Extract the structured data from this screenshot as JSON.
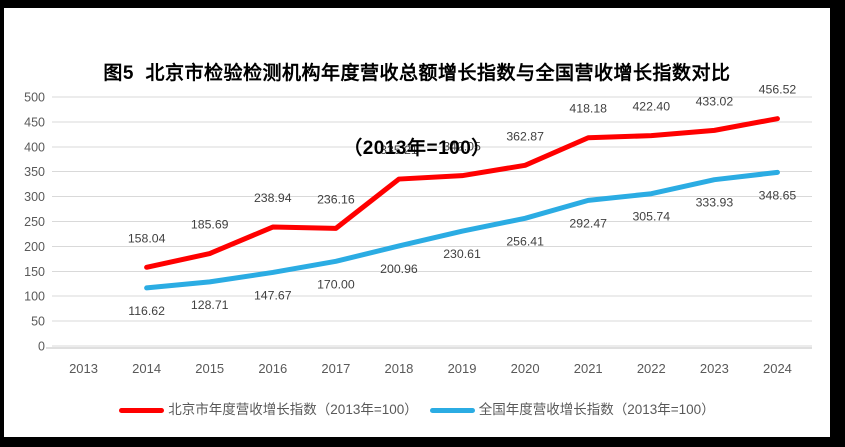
{
  "title": {
    "line1": "图5  北京市检验检测机构年度营收总额增长指数与全国营收增长指数对比",
    "line2": "（2013年=100）"
  },
  "legend": [
    {
      "label": "北京市年度营收增长指数（2013年=100）",
      "color": "#FF0000"
    },
    {
      "label": "全国年度营收增长指数（2013年=100）",
      "color": "#2BACE3"
    }
  ],
  "colors": {
    "series_beijing": "#FF0000",
    "series_national": "#2BACE3",
    "gridline": "#D9D9D9",
    "axis_line": "#BFBFBF",
    "axis_text": "#595959",
    "data_label_text": "#404040",
    "title_text": "#000000",
    "frame": "#000000"
  },
  "chart_data": {
    "type": "line",
    "title": "图5 北京市检验检测机构年度营收总额增长指数与全国营收增长指数对比（2013年=100）",
    "categories": [
      "2013",
      "2014",
      "2015",
      "2016",
      "2017",
      "2018",
      "2019",
      "2020",
      "2021",
      "2022",
      "2023",
      "2024"
    ],
    "series": [
      {
        "name": "北京市年度营收增长指数（2013年=100）",
        "color": "#FF0000",
        "label_position": "above",
        "values": [
          null,
          158.04,
          185.69,
          238.94,
          236.16,
          335.21,
          342.05,
          362.87,
          418.18,
          422.4,
          433.02,
          456.52
        ]
      },
      {
        "name": "全国年度营收增长指数（2013年=100）",
        "color": "#2BACE3",
        "label_position": "below",
        "values": [
          null,
          116.62,
          128.71,
          147.67,
          170.0,
          200.96,
          230.61,
          256.41,
          292.47,
          305.74,
          333.93,
          348.65
        ]
      }
    ],
    "xlabel": "",
    "ylabel": "",
    "ylim": [
      0,
      500
    ],
    "ytick_step": 50,
    "grid": true,
    "legend_position": "bottom",
    "data_labels": true,
    "data_label_decimals": 2
  }
}
